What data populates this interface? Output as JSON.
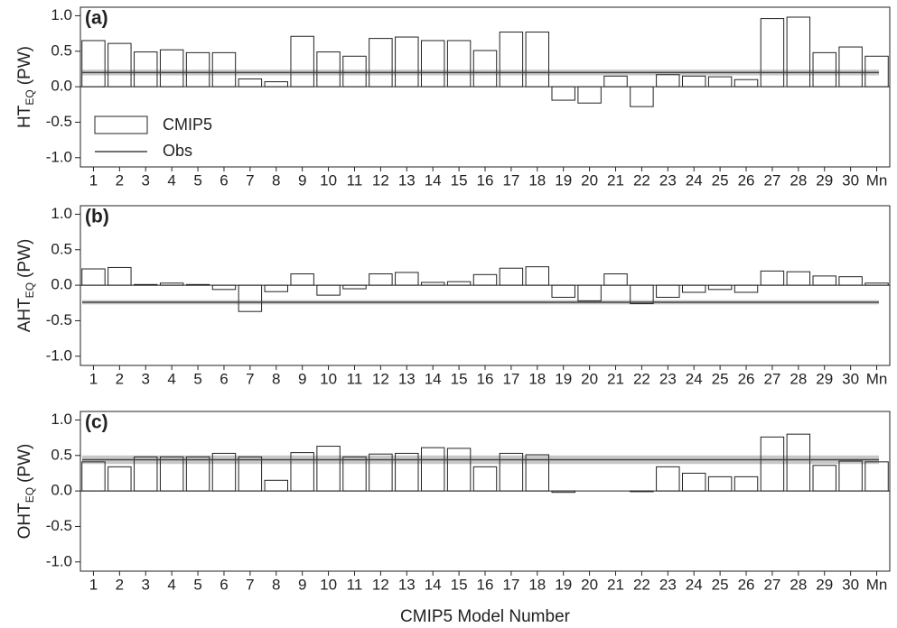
{
  "chart_data": [
    {
      "type": "bar",
      "panel_label": "(a)",
      "ylabel": {
        "main": "HT",
        "sub": "EQ",
        "unit": "(PW)"
      },
      "categories": [
        "1",
        "2",
        "3",
        "4",
        "5",
        "6",
        "7",
        "8",
        "9",
        "10",
        "11",
        "12",
        "13",
        "14",
        "15",
        "16",
        "17",
        "18",
        "19",
        "20",
        "21",
        "22",
        "23",
        "24",
        "25",
        "26",
        "27",
        "28",
        "29",
        "30",
        "Mn"
      ],
      "series": [
        {
          "name": "CMIP5",
          "color": "#ffffff",
          "values": [
            0.65,
            0.61,
            0.49,
            0.52,
            0.48,
            0.48,
            0.11,
            0.07,
            0.71,
            0.49,
            0.43,
            0.68,
            0.7,
            0.65,
            0.65,
            0.51,
            0.77,
            0.77,
            -0.19,
            -0.23,
            0.15,
            -0.28,
            0.17,
            0.15,
            0.14,
            0.1,
            0.96,
            0.98,
            0.48,
            0.56,
            0.43
          ]
        }
      ],
      "reference": {
        "name": "Obs",
        "value": 0.2,
        "band": [
          0.16,
          0.24
        ],
        "color": "#444444",
        "band_color": "#c8c8c8"
      },
      "legend": "lower left",
      "zero_line": true,
      "ylim": [
        -1.13,
        1.12
      ],
      "yticks": [
        {
          "value": 1.0,
          "label": "1.0"
        },
        {
          "value": 0.5,
          "label": "0.5"
        },
        {
          "value": 0,
          "label": "0.0"
        },
        {
          "value": -0.5,
          "label": "-0.5"
        },
        {
          "value": -1.0,
          "label": "-1.0"
        }
      ]
    },
    {
      "type": "bar",
      "panel_label": "(b)",
      "ylabel": {
        "main": "AHT",
        "sub": "EQ",
        "unit": "(PW)"
      },
      "categories": [
        "1",
        "2",
        "3",
        "4",
        "5",
        "6",
        "7",
        "8",
        "9",
        "10",
        "11",
        "12",
        "13",
        "14",
        "15",
        "16",
        "17",
        "18",
        "19",
        "20",
        "21",
        "22",
        "23",
        "24",
        "25",
        "26",
        "27",
        "28",
        "29",
        "30",
        "Mn"
      ],
      "series": [
        {
          "color": "#ffffff",
          "values": [
            0.23,
            0.25,
            0.01,
            0.03,
            0.01,
            -0.06,
            -0.37,
            -0.09,
            0.16,
            -0.14,
            -0.05,
            0.16,
            0.18,
            0.04,
            0.05,
            0.15,
            0.24,
            0.26,
            -0.17,
            -0.22,
            0.16,
            -0.26,
            -0.17,
            -0.1,
            -0.06,
            -0.1,
            0.2,
            0.19,
            0.13,
            0.12,
            0.03
          ]
        }
      ],
      "reference": {
        "value": -0.24,
        "band": [
          -0.27,
          -0.21
        ],
        "color": "#444444",
        "band_color": "#c8c8c8"
      },
      "zero_line": true,
      "ylim": [
        -1.13,
        1.12
      ],
      "yticks": [
        {
          "value": 1.0,
          "label": "1.0"
        },
        {
          "value": 0.5,
          "label": "0.5"
        },
        {
          "value": 0,
          "label": "0.0"
        },
        {
          "value": -0.5,
          "label": "-0.5"
        },
        {
          "value": -1.0,
          "label": "-1.0"
        }
      ]
    },
    {
      "type": "bar",
      "panel_label": "(c)",
      "ylabel": {
        "main": "OHT",
        "sub": "EQ",
        "unit": "(PW)"
      },
      "xlabel": "CMIP5 Model Number",
      "categories": [
        "1",
        "2",
        "3",
        "4",
        "5",
        "6",
        "7",
        "8",
        "9",
        "10",
        "11",
        "12",
        "13",
        "14",
        "15",
        "16",
        "17",
        "18",
        "19",
        "20",
        "21",
        "22",
        "23",
        "24",
        "25",
        "26",
        "27",
        "28",
        "29",
        "30",
        "Mn"
      ],
      "series": [
        {
          "color": "#ffffff",
          "values": [
            0.41,
            0.34,
            0.48,
            0.48,
            0.48,
            0.53,
            0.48,
            0.15,
            0.54,
            0.63,
            0.48,
            0.52,
            0.53,
            0.61,
            0.6,
            0.34,
            0.53,
            0.51,
            -0.02,
            0,
            0,
            -0.01,
            0.34,
            0.25,
            0.2,
            0.2,
            0.76,
            0.8,
            0.36,
            0.42,
            0.41
          ]
        }
      ],
      "reference": {
        "value": 0.44,
        "band": [
          0.38,
          0.5
        ],
        "color": "#444444",
        "band_color": "#c8c8c8"
      },
      "zero_line": true,
      "ylim": [
        -1.13,
        1.12
      ],
      "yticks": [
        {
          "value": 1.0,
          "label": "1.0"
        },
        {
          "value": 0.5,
          "label": "0.5"
        },
        {
          "value": 0,
          "label": "0.0"
        },
        {
          "value": -0.5,
          "label": "-0.5"
        },
        {
          "value": -1.0,
          "label": "-1.0"
        }
      ]
    }
  ]
}
